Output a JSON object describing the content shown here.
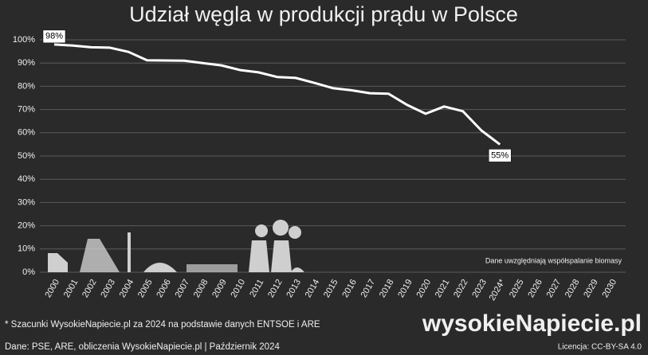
{
  "chart_data": {
    "type": "line",
    "title": "Udział węgla w produkcji prądu w Polsce",
    "categories": [
      "2000",
      "2001",
      "2002",
      "2003",
      "2004",
      "2005",
      "2006",
      "2007",
      "2008",
      "2009",
      "2010",
      "2011",
      "2012",
      "2013",
      "2014",
      "2015",
      "2016",
      "2017",
      "2018",
      "2019",
      "2020",
      "2021",
      "2022",
      "2023",
      "2024*",
      "2025",
      "2026",
      "2027",
      "2028",
      "2029",
      "2030"
    ],
    "series": [
      {
        "name": "Udział węgla",
        "color": "#ffffff",
        "values": [
          98,
          97.5,
          96.8,
          96.6,
          94.8,
          91.2,
          91.1,
          91,
          90,
          89,
          87,
          86,
          84,
          83.6,
          81.5,
          79.2,
          78.3,
          77,
          76.8,
          72,
          68.2,
          71.3,
          69.3,
          61,
          55,
          null,
          null,
          null,
          null,
          null,
          null
        ],
        "value_labels": [
          "98%",
          null,
          null,
          null,
          null,
          null,
          null,
          null,
          null,
          null,
          null,
          null,
          null,
          null,
          null,
          null,
          null,
          null,
          null,
          null,
          null,
          null,
          null,
          null,
          "55%",
          null,
          null,
          null,
          null,
          null,
          null
        ]
      }
    ],
    "ylim": [
      0,
      100
    ],
    "yticks": [
      {
        "value": 0,
        "label": "0%"
      },
      {
        "value": 10,
        "label": "10%"
      },
      {
        "value": 20,
        "label": "20%"
      },
      {
        "value": 30,
        "label": "30%"
      },
      {
        "value": 40,
        "label": "40%"
      },
      {
        "value": 50,
        "label": "50%"
      },
      {
        "value": 60,
        "label": "60%"
      },
      {
        "value": 70,
        "label": "70%"
      },
      {
        "value": 80,
        "label": "80%"
      },
      {
        "value": 90,
        "label": "90%"
      },
      {
        "value": 100,
        "label": "100%"
      }
    ],
    "grid": true,
    "annotation": "Dane uwzględniają współspalanie biomasy",
    "footnote": "* Szacunki WysokieNapiecie.pl za 2024 na podstawie danych ENTSOE i ARE",
    "source": "Dane: PSE, ARE, obliczenia WysokieNapiecie.pl  |  Październik 2024",
    "brand": "wysokieNapiecie.pl",
    "license": "Licencja: CC-BY-SA 4.0"
  }
}
